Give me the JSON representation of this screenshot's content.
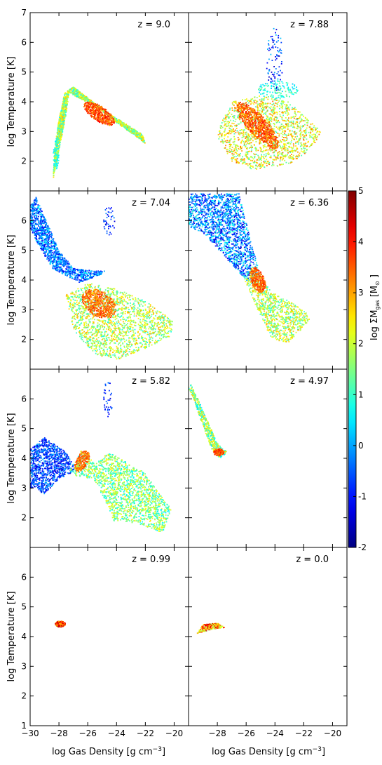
{
  "chart_data": {
    "type": "scatter",
    "layout": "4x2 panel grid",
    "xlabel": "log Gas Density [g cm$^{-3}$]",
    "xlabel_display": "log Gas Density [g cm",
    "xlabel_exp": "−3",
    "xlabel_close": "]",
    "ylabel": "log Temperature [K]",
    "xlim": [
      -30,
      -19
    ],
    "ylim": [
      1,
      7
    ],
    "xticks": [
      -30,
      -28,
      -26,
      -24,
      -22,
      -20
    ],
    "xtick_labels_left": [
      "−30",
      "−28",
      "−26",
      "−24",
      "−22",
      "−20"
    ],
    "xtick_labels_right": [
      "−28",
      "−26",
      "−24",
      "−22",
      "−20"
    ],
    "yticks": [
      1,
      2,
      3,
      4,
      5,
      6,
      7
    ],
    "colorbar": {
      "label": "log ΣM_gas [M_⊙]",
      "label_main": "log ΣM",
      "label_sub": "gas",
      "label_unit_open": " [M",
      "label_unit_sub": "⊙",
      "label_unit_close": " ]",
      "range": [
        -2,
        5
      ],
      "ticks": [
        -2,
        -1,
        0,
        1,
        2,
        3,
        4,
        5
      ],
      "tick_labels": [
        "-2",
        "-1",
        "0",
        "1",
        "2",
        "3",
        "4",
        "5"
      ],
      "colormap": "jet"
    },
    "panels": [
      {
        "label": "z = 9.0",
        "regions": [
          {
            "shape": "poly",
            "pts": [
              [
                -28.4,
                1.4
              ],
              [
                -28.1,
                2.1
              ],
              [
                -27.5,
                3.6
              ],
              [
                -27.3,
                4.3
              ],
              [
                -26.5,
                4.1
              ],
              [
                -25.3,
                3.8
              ],
              [
                -24.0,
                3.3
              ],
              [
                -22.0,
                2.6
              ],
              [
                -22.2,
                2.9
              ],
              [
                -24.5,
                3.6
              ],
              [
                -27.0,
                4.5
              ],
              [
                -27.6,
                4.3
              ],
              [
                -28.0,
                3.4
              ],
              [
                -28.3,
                2.4
              ]
            ],
            "n": 1600,
            "c": [
              0.6,
              2.9
            ]
          },
          {
            "shape": "ell",
            "cx": -25.2,
            "cy": 3.6,
            "rx": 1.1,
            "ry": 0.28,
            "rot": -15,
            "n": 500,
            "c": [
              3.0,
              4.2
            ]
          },
          {
            "shape": "ell",
            "cx": -28.2,
            "cy": 2.2,
            "rx": 0.2,
            "ry": 0.5,
            "rot": 0,
            "n": 60,
            "c": [
              0.4,
              1.2
            ]
          }
        ]
      },
      {
        "label": "z = 7.88",
        "regions": [
          {
            "shape": "poly",
            "pts": [
              [
                -27.8,
                3.2
              ],
              [
                -27.0,
                4.0
              ],
              [
                -25.0,
                4.2
              ],
              [
                -23.0,
                4.0
              ],
              [
                -20.8,
                3.0
              ],
              [
                -21.2,
                2.5
              ],
              [
                -23.0,
                1.9
              ],
              [
                -25.5,
                1.7
              ],
              [
                -27.0,
                2.0
              ],
              [
                -28.0,
                2.8
              ]
            ],
            "n": 1500,
            "c": [
              1.0,
              3.4
            ]
          },
          {
            "shape": "ell",
            "cx": -25.2,
            "cy": 3.2,
            "rx": 1.6,
            "ry": 0.42,
            "rot": -25,
            "n": 700,
            "c": [
              2.9,
              4.1
            ]
          },
          {
            "shape": "ell",
            "cx": -24.0,
            "cy": 5.4,
            "rx": 0.6,
            "ry": 1.1,
            "rot": 0,
            "n": 90,
            "c": [
              -1.6,
              0.3
            ]
          },
          {
            "shape": "ell",
            "cx": -23.8,
            "cy": 4.4,
            "rx": 1.4,
            "ry": 0.3,
            "rot": 0,
            "n": 140,
            "c": [
              0.2,
              1.5
            ]
          }
        ]
      },
      {
        "label": "z = 7.04",
        "regions": [
          {
            "shape": "poly",
            "pts": [
              [
                -30.0,
                6.5
              ],
              [
                -29.6,
                6.8
              ],
              [
                -28.0,
                5.0
              ],
              [
                -27.0,
                4.4
              ],
              [
                -25.5,
                4.3
              ],
              [
                -24.5,
                4.3
              ],
              [
                -26.5,
                3.9
              ],
              [
                -28.5,
                4.4
              ],
              [
                -29.8,
                5.5
              ],
              [
                -30.0,
                5.8
              ]
            ],
            "n": 1200,
            "c": [
              -1.3,
              0.6
            ]
          },
          {
            "shape": "poly",
            "pts": [
              [
                -27.5,
                3.5
              ],
              [
                -26.0,
                3.9
              ],
              [
                -24.0,
                3.7
              ],
              [
                -22.0,
                3.3
              ],
              [
                -20.0,
                2.6
              ],
              [
                -20.3,
                2.1
              ],
              [
                -22.0,
                1.7
              ],
              [
                -24.0,
                1.3
              ],
              [
                -25.5,
                1.5
              ],
              [
                -27.0,
                2.3
              ]
            ],
            "n": 1700,
            "c": [
              0.8,
              3.0
            ]
          },
          {
            "shape": "ell",
            "cx": -25.2,
            "cy": 3.2,
            "rx": 1.2,
            "ry": 0.45,
            "rot": -10,
            "n": 500,
            "c": [
              2.9,
              3.9
            ]
          },
          {
            "shape": "ell",
            "cx": -24.5,
            "cy": 6.0,
            "rx": 0.4,
            "ry": 0.5,
            "rot": 0,
            "n": 40,
            "c": [
              -1.5,
              -0.2
            ]
          }
        ]
      },
      {
        "label": "z = 6.36",
        "regions": [
          {
            "shape": "poly",
            "pts": [
              [
                -30.0,
                6.9
              ],
              [
                -26.5,
                6.9
              ],
              [
                -25.5,
                5.0
              ],
              [
                -25.0,
                4.2
              ],
              [
                -25.8,
                3.9
              ],
              [
                -27.5,
                4.8
              ],
              [
                -29.0,
                5.6
              ],
              [
                -30.0,
                5.8
              ]
            ],
            "n": 1700,
            "c": [
              -1.5,
              1.0
            ]
          },
          {
            "shape": "poly",
            "pts": [
              [
                -26.2,
                4.1
              ],
              [
                -25.6,
                4.4
              ],
              [
                -24.2,
                3.6
              ],
              [
                -22.0,
                3.0
              ],
              [
                -21.5,
                2.7
              ],
              [
                -23.0,
                1.9
              ],
              [
                -24.2,
                2.0
              ],
              [
                -25.2,
                3.0
              ]
            ],
            "n": 900,
            "c": [
              0.8,
              3.0
            ]
          },
          {
            "shape": "ell",
            "cx": -25.2,
            "cy": 4.0,
            "rx": 0.6,
            "ry": 0.35,
            "rot": -30,
            "n": 280,
            "c": [
              3.0,
              4.0
            ]
          }
        ]
      },
      {
        "label": "z = 5.82",
        "regions": [
          {
            "shape": "poly",
            "pts": [
              [
                -30.0,
                4.3
              ],
              [
                -29.0,
                4.7
              ],
              [
                -27.5,
                4.2
              ],
              [
                -26.8,
                3.6
              ],
              [
                -28.0,
                3.3
              ],
              [
                -29.0,
                2.8
              ],
              [
                -30.0,
                3.0
              ]
            ],
            "n": 1000,
            "c": [
              -1.5,
              0.2
            ]
          },
          {
            "shape": "poly",
            "pts": [
              [
                -27.2,
                3.6
              ],
              [
                -26.4,
                4.3
              ],
              [
                -25.5,
                3.8
              ],
              [
                -24.5,
                4.2
              ],
              [
                -22.0,
                3.5
              ],
              [
                -20.2,
                2.3
              ],
              [
                -20.8,
                1.5
              ],
              [
                -22.5,
                1.8
              ],
              [
                -24.2,
                1.9
              ],
              [
                -24.8,
                2.6
              ],
              [
                -25.6,
                3.3
              ],
              [
                -26.8,
                3.4
              ]
            ],
            "n": 1700,
            "c": [
              0.5,
              2.6
            ]
          },
          {
            "shape": "ell",
            "cx": -26.4,
            "cy": 3.9,
            "rx": 0.55,
            "ry": 0.28,
            "rot": 25,
            "n": 220,
            "c": [
              2.9,
              3.9
            ]
          },
          {
            "shape": "ell",
            "cx": -24.6,
            "cy": 6.0,
            "rx": 0.35,
            "ry": 0.6,
            "rot": 0,
            "n": 35,
            "c": [
              -1.5,
              -0.2
            ]
          }
        ]
      },
      {
        "label": "z = 4.97",
        "regions": [
          {
            "shape": "poly",
            "pts": [
              [
                -30.0,
                6.4
              ],
              [
                -29.8,
                6.5
              ],
              [
                -28.0,
                4.5
              ],
              [
                -27.3,
                4.2
              ],
              [
                -27.8,
                4.0
              ],
              [
                -28.4,
                4.3
              ],
              [
                -29.6,
                5.9
              ]
            ],
            "n": 500,
            "c": [
              0.3,
              2.8
            ]
          },
          {
            "shape": "ell",
            "cx": -27.9,
            "cy": 4.2,
            "rx": 0.35,
            "ry": 0.12,
            "rot": 0,
            "n": 120,
            "c": [
              3.2,
              4.2
            ]
          }
        ]
      },
      {
        "label": "z = 0.99",
        "regions": [
          {
            "shape": "ell",
            "cx": -27.9,
            "cy": 4.42,
            "rx": 0.35,
            "ry": 0.1,
            "rot": 0,
            "n": 220,
            "c": [
              2.3,
              4.7
            ]
          }
        ]
      },
      {
        "label": "z = 0.0",
        "regions": [
          {
            "shape": "poly",
            "pts": [
              [
                -29.4,
                4.1
              ],
              [
                -29.0,
                4.4
              ],
              [
                -28.0,
                4.45
              ],
              [
                -27.5,
                4.3
              ],
              [
                -28.3,
                4.25
              ],
              [
                -29.1,
                4.15
              ]
            ],
            "n": 260,
            "c": [
              1.5,
              4.5
            ]
          }
        ]
      }
    ]
  }
}
